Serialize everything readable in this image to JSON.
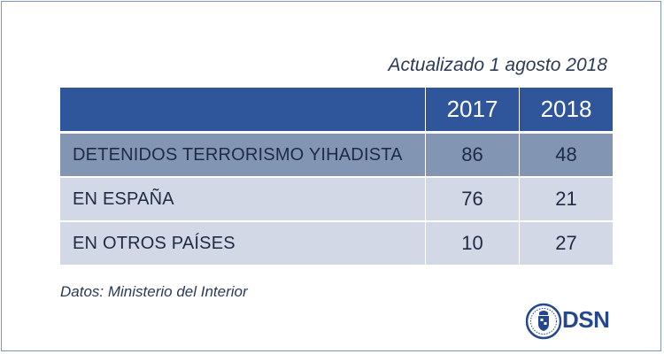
{
  "updated_label": "Actualizado 1 agosto 2018",
  "source_label": "Datos: Ministerio del Interior",
  "logo": {
    "icon": "coat-of-arms-seal-icon",
    "text": "DSN"
  },
  "colors": {
    "header": "#2f569b",
    "total_row": "#8296b3",
    "row": "#d2d8e5",
    "text": "#1f2a44",
    "logo": "#24478f"
  },
  "chart_data": {
    "type": "table",
    "columns": [
      "",
      "2017",
      "2018"
    ],
    "rows": [
      {
        "label": "DETENIDOS TERRORISMO YIHADISTA",
        "values": [
          86,
          48
        ],
        "style": "total"
      },
      {
        "label": "EN ESPAÑA",
        "values": [
          76,
          21
        ],
        "style": "normal"
      },
      {
        "label": "EN OTROS PAÍSES",
        "values": [
          10,
          27
        ],
        "style": "normal"
      }
    ]
  }
}
